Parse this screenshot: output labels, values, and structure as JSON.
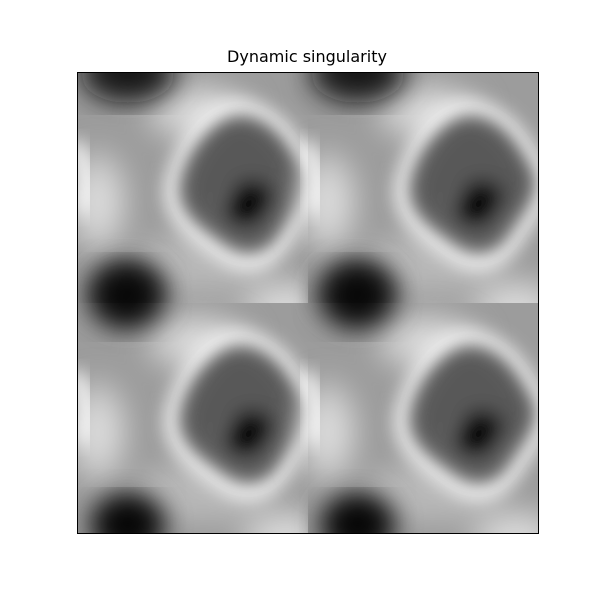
{
  "figure": {
    "title": "Dynamic singularity"
  },
  "image": {
    "colormap": "grayscale",
    "pattern": "periodic",
    "tiles_x": 2,
    "tiles_y": 2,
    "axes_ticks": "none",
    "colors": {
      "frame": "#000000",
      "background": "#ffffff"
    }
  }
}
